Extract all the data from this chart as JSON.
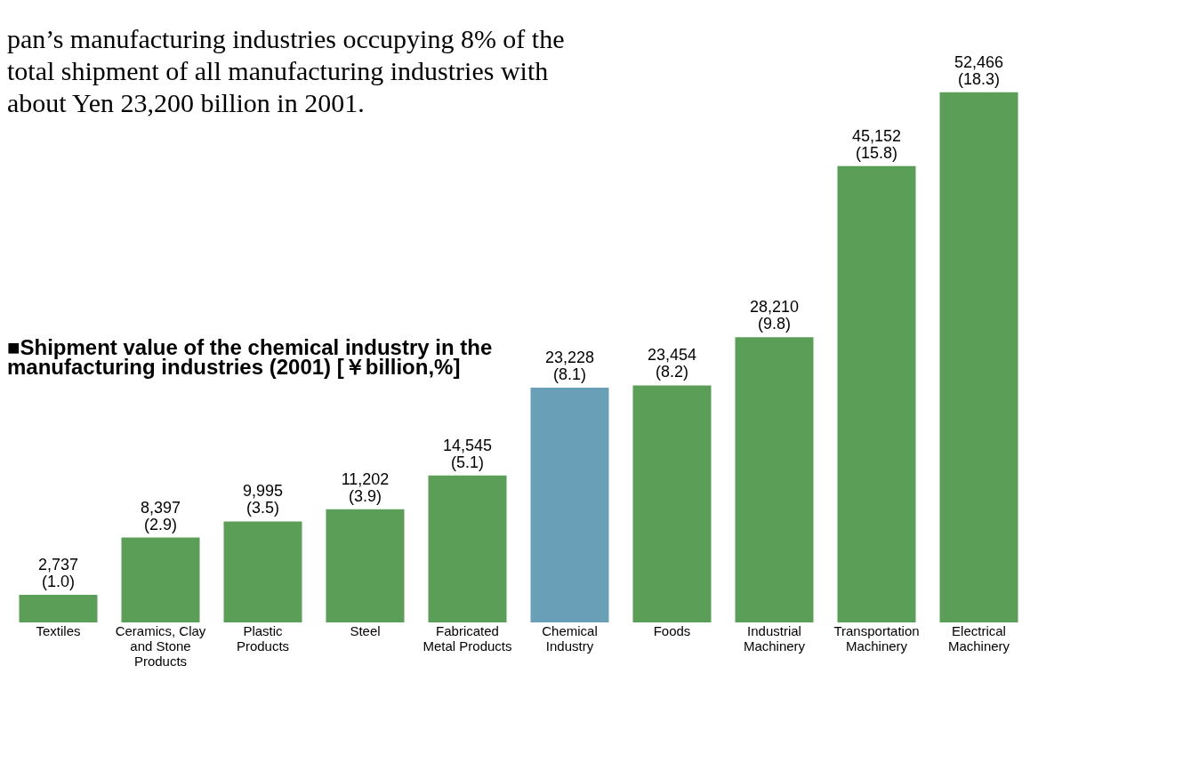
{
  "chart_data": {
    "type": "bar",
    "title": "■Shipment value of the chemical industry in the manufacturing industries (2001) [￥billion,%]",
    "annotations": [
      "pan’s manufacturing industries occupying 8% of the total shipment of all manufacturing industries with about Yen 23,200 billion in 2001."
    ],
    "categories": [
      "Textiles",
      "Ceramics, Clay and Stone Products",
      "Plastic Products",
      "Steel",
      "Fabricated Metal Products",
      "Chemical Industry",
      "Foods",
      "Industrial Machinery",
      "Transportation Machinery",
      "Electrical Machinery"
    ],
    "values": [
      2737,
      8397,
      9995,
      11202,
      14545,
      23228,
      23454,
      28210,
      45152,
      52466
    ],
    "value_labels": [
      "2,737\n(1.0)",
      "8,397\n(2.9)",
      "9,995\n(3.5)",
      "11,202\n(3.9)",
      "14,545\n(5.1)",
      "23,228\n(8.1)",
      "23,454\n(8.2)",
      "28,210\n(9.8)",
      "45,152\n(15.8)",
      "52,466\n(18.3)"
    ],
    "colors": [
      "#5a9e58",
      "#5a9e58",
      "#5a9e58",
      "#5a9e58",
      "#5a9e58",
      "#6a9fb8",
      "#5a9e58",
      "#5a9e58",
      "#5a9e58",
      "#5a9e58"
    ],
    "grid": false
  }
}
